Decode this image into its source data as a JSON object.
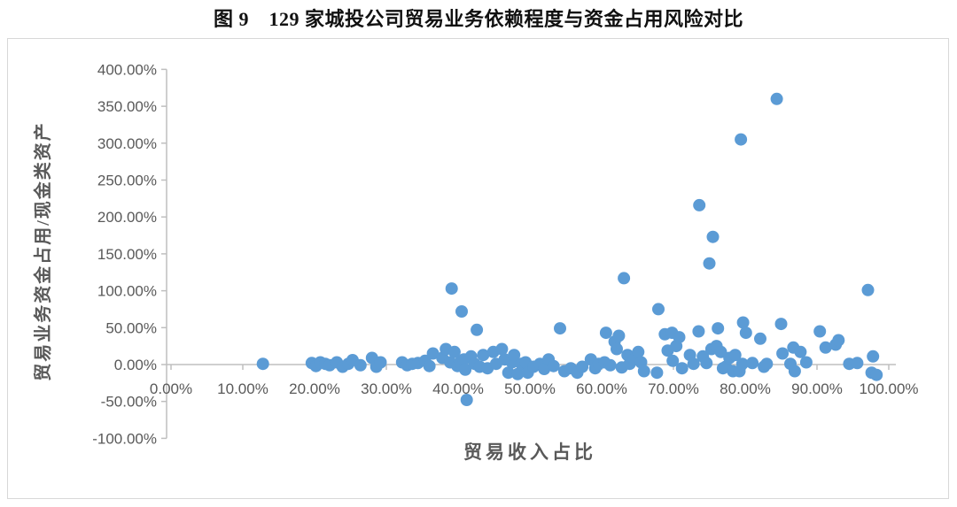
{
  "figure": {
    "title": "图 9　129 家城投公司贸易业务依赖程度与资金占用风险对比"
  },
  "chart_data": {
    "type": "scatter",
    "title": "图 9　129 家城投公司贸易业务依赖程度与资金占用风险对比",
    "xlabel": "贸易收入占比",
    "ylabel": "贸易业务资金占用/现金类资产",
    "xlim": [
      0,
      105
    ],
    "ylim": [
      -100,
      400
    ],
    "grid": false,
    "legend": null,
    "marker_color": "#5b9bd5",
    "axis_color": "#bfbfbf",
    "tick_label_color": "#595959",
    "axis_title_color": "#595959",
    "x_tick_values": [
      0,
      10,
      20,
      30,
      40,
      50,
      60,
      70,
      80,
      90,
      100
    ],
    "x_tick_labels": [
      "0.00%",
      "10.00%",
      "20.00%",
      "30.00%",
      "40.00%",
      "50.00%",
      "60.00%",
      "70.00%",
      "80.00%",
      "90.00%",
      "100.00%"
    ],
    "y_tick_values": [
      400,
      350,
      300,
      250,
      200,
      150,
      100,
      50,
      0,
      -50,
      -100
    ],
    "y_tick_labels": [
      "400.00%",
      "350.00%",
      "300.00%",
      "250.00%",
      "200.00%",
      "150.00%",
      "100.00%",
      "50.00%",
      "0.00%",
      "-50.00%",
      "-100.00%"
    ],
    "points_unit": "percent",
    "points": [
      [
        12.8,
        1
      ],
      [
        19.6,
        2
      ],
      [
        20.2,
        -2
      ],
      [
        20.8,
        3
      ],
      [
        21.5,
        1
      ],
      [
        22.1,
        -1
      ],
      [
        23.1,
        3
      ],
      [
        23.9,
        -3
      ],
      [
        24.7,
        1
      ],
      [
        25.3,
        6
      ],
      [
        26.4,
        -1
      ],
      [
        28.0,
        9
      ],
      [
        28.6,
        -3
      ],
      [
        29.2,
        3
      ],
      [
        32.2,
        3
      ],
      [
        32.9,
        -1
      ],
      [
        33.6,
        1
      ],
      [
        34.4,
        2
      ],
      [
        35.4,
        5
      ],
      [
        36.0,
        -2
      ],
      [
        36.5,
        15
      ],
      [
        37.8,
        9
      ],
      [
        38.3,
        21
      ],
      [
        38.9,
        3
      ],
      [
        39.1,
        103
      ],
      [
        39.5,
        17
      ],
      [
        39.9,
        -2
      ],
      [
        40.3,
        3
      ],
      [
        40.5,
        72
      ],
      [
        40.8,
        7
      ],
      [
        41.0,
        -7
      ],
      [
        41.2,
        -48
      ],
      [
        41.8,
        11
      ],
      [
        42.3,
        1
      ],
      [
        42.6,
        47
      ],
      [
        43.0,
        -3
      ],
      [
        43.5,
        13
      ],
      [
        44.1,
        -5
      ],
      [
        44.9,
        17
      ],
      [
        45.3,
        1
      ],
      [
        46.1,
        21
      ],
      [
        46.5,
        7
      ],
      [
        47.0,
        -11
      ],
      [
        47.5,
        3
      ],
      [
        47.8,
        13
      ],
      [
        48.3,
        -13
      ],
      [
        48.8,
        1
      ],
      [
        49.4,
        3
      ],
      [
        49.7,
        -11
      ],
      [
        50.5,
        -3
      ],
      [
        51.4,
        1
      ],
      [
        52.0,
        -6
      ],
      [
        52.6,
        7
      ],
      [
        53.3,
        -2
      ],
      [
        54.2,
        49
      ],
      [
        54.8,
        -9
      ],
      [
        55.7,
        -5
      ],
      [
        56.6,
        -11
      ],
      [
        57.3,
        -3
      ],
      [
        58.5,
        7
      ],
      [
        59.1,
        -5
      ],
      [
        59.6,
        1
      ],
      [
        60.4,
        3
      ],
      [
        60.6,
        43
      ],
      [
        61.2,
        -1
      ],
      [
        61.8,
        31
      ],
      [
        62.1,
        21
      ],
      [
        62.4,
        39
      ],
      [
        62.8,
        -4
      ],
      [
        63.1,
        117
      ],
      [
        63.6,
        13
      ],
      [
        63.9,
        1
      ],
      [
        64.5,
        7
      ],
      [
        65.1,
        17
      ],
      [
        65.5,
        3
      ],
      [
        65.9,
        -9
      ],
      [
        67.7,
        -11
      ],
      [
        67.9,
        75
      ],
      [
        68.8,
        41
      ],
      [
        69.2,
        19
      ],
      [
        69.8,
        43
      ],
      [
        69.9,
        5
      ],
      [
        70.4,
        25
      ],
      [
        70.8,
        37
      ],
      [
        71.2,
        -5
      ],
      [
        72.3,
        13
      ],
      [
        72.8,
        1
      ],
      [
        73.5,
        45
      ],
      [
        73.6,
        216
      ],
      [
        74.1,
        11
      ],
      [
        74.6,
        2
      ],
      [
        75.0,
        137
      ],
      [
        75.3,
        21
      ],
      [
        75.5,
        173
      ],
      [
        76.0,
        25
      ],
      [
        76.2,
        49
      ],
      [
        76.6,
        17
      ],
      [
        76.9,
        -5
      ],
      [
        77.3,
        -3
      ],
      [
        77.8,
        9
      ],
      [
        78.3,
        -9
      ],
      [
        78.6,
        13
      ],
      [
        79.2,
        -9
      ],
      [
        79.4,
        305
      ],
      [
        79.6,
        1
      ],
      [
        79.7,
        57
      ],
      [
        80.1,
        43
      ],
      [
        81.0,
        2
      ],
      [
        82.1,
        35
      ],
      [
        82.6,
        -3
      ],
      [
        83.0,
        1
      ],
      [
        84.4,
        360
      ],
      [
        85.0,
        55
      ],
      [
        85.2,
        15
      ],
      [
        86.3,
        1
      ],
      [
        86.7,
        23
      ],
      [
        86.9,
        -9
      ],
      [
        87.7,
        17
      ],
      [
        88.5,
        3
      ],
      [
        90.4,
        45
      ],
      [
        91.2,
        23
      ],
      [
        92.6,
        27
      ],
      [
        93.0,
        33
      ],
      [
        94.5,
        1
      ],
      [
        95.6,
        2
      ],
      [
        97.1,
        101
      ],
      [
        97.8,
        11
      ],
      [
        97.6,
        -11
      ],
      [
        98.3,
        -14
      ]
    ]
  }
}
